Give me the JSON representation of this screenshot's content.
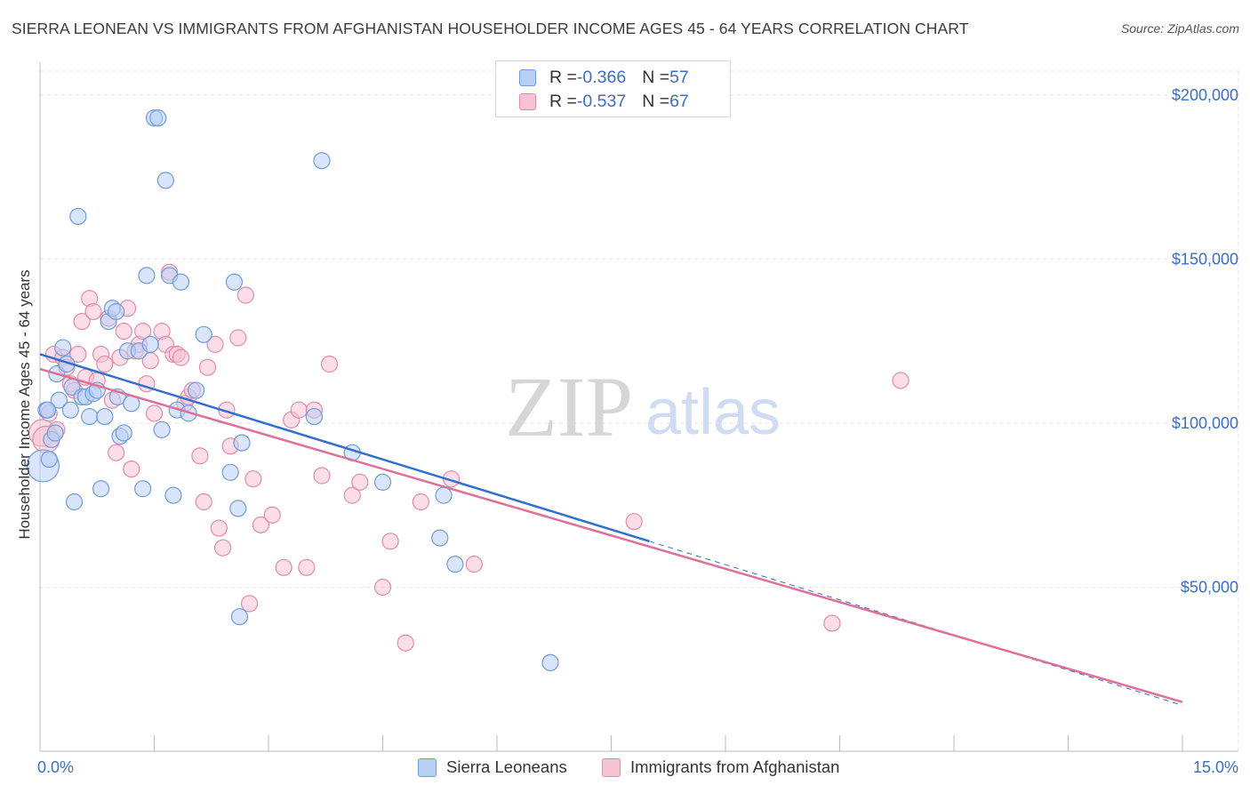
{
  "title": "SIERRA LEONEAN VS IMMIGRANTS FROM AFGHANISTAN HOUSEHOLDER INCOME AGES 45 - 64 YEARS CORRELATION CHART",
  "source": "Source: ZipAtlas.com",
  "watermark": {
    "zip": "ZIP",
    "atlas": "atlas"
  },
  "legend": {
    "blue": {
      "r_label": "R = ",
      "r_value": "-0.366",
      "n_label": "N = ",
      "n_value": "57"
    },
    "pink": {
      "r_label": "R = ",
      "r_value": "-0.537",
      "n_label": "N = ",
      "n_value": "67"
    }
  },
  "bottom_legend": {
    "blue": "Sierra Leoneans",
    "pink": "Immigrants from Afghanistan"
  },
  "colors": {
    "blue_fill": "#b8cff5",
    "blue_stroke": "#6f9be0",
    "blue_line": "#2f6fd0",
    "pink_fill": "#f7c3d3",
    "pink_stroke": "#e68aa8",
    "pink_line": "#e06f98",
    "grid": "#e3e3e3",
    "axis_text": "#3a6ecf"
  },
  "chart_data": {
    "type": "scatter",
    "title": "SIERRA LEONEAN VS IMMIGRANTS FROM AFGHANISTAN HOUSEHOLDER INCOME AGES 45 - 64 YEARS CORRELATION CHART",
    "xlabel": "",
    "ylabel": "Householder Income Ages 45 - 64 years",
    "xlim": [
      0,
      15
    ],
    "ylim": [
      0,
      210000
    ],
    "x_tick_labels": [
      "0.0%",
      "15.0%"
    ],
    "y_ticks": [
      50000,
      100000,
      150000,
      200000
    ],
    "y_tick_labels": [
      "$50,000",
      "$100,000",
      "$150,000",
      "$200,000"
    ],
    "grid": true,
    "legend_position": "top-center",
    "series": [
      {
        "name": "Sierra Leoneans",
        "R": -0.366,
        "N": 57,
        "trend": {
          "x0": 0,
          "y0": 121000,
          "x1": 8.0,
          "y1": 64000,
          "dashed_to_x": 15,
          "dashed_to_y": 14000
        },
        "points": [
          [
            0.04,
            87000,
            3
          ],
          [
            0.08,
            104000,
            1
          ],
          [
            0.12,
            89000,
            1
          ],
          [
            0.15,
            95000,
            1
          ],
          [
            0.2,
            97000,
            1
          ],
          [
            0.22,
            115000,
            1
          ],
          [
            0.25,
            107000,
            1
          ],
          [
            0.3,
            123000,
            1
          ],
          [
            0.35,
            118000,
            1
          ],
          [
            0.4,
            104000,
            1
          ],
          [
            0.42,
            111000,
            1
          ],
          [
            0.45,
            76000,
            1
          ],
          [
            0.5,
            163000,
            1
          ],
          [
            0.55,
            108000,
            1
          ],
          [
            0.6,
            108000,
            1
          ],
          [
            0.65,
            102000,
            1
          ],
          [
            0.7,
            109000,
            1
          ],
          [
            0.75,
            110000,
            1
          ],
          [
            0.8,
            80000,
            1
          ],
          [
            0.85,
            102000,
            1
          ],
          [
            0.9,
            131000,
            1
          ],
          [
            0.95,
            135000,
            1
          ],
          [
            1.0,
            134000,
            1
          ],
          [
            1.02,
            108000,
            1
          ],
          [
            1.05,
            96000,
            1
          ],
          [
            1.1,
            97000,
            1
          ],
          [
            1.15,
            122000,
            1
          ],
          [
            1.2,
            106000,
            1
          ],
          [
            1.3,
            122000,
            1
          ],
          [
            1.35,
            80000,
            1
          ],
          [
            1.4,
            145000,
            1
          ],
          [
            1.45,
            124000,
            1
          ],
          [
            1.5,
            193000,
            1
          ],
          [
            1.55,
            193000,
            1
          ],
          [
            1.6,
            98000,
            1
          ],
          [
            1.65,
            174000,
            1
          ],
          [
            1.7,
            145000,
            1
          ],
          [
            1.75,
            78000,
            1
          ],
          [
            1.8,
            104000,
            1
          ],
          [
            1.85,
            143000,
            1
          ],
          [
            1.95,
            103000,
            1
          ],
          [
            2.05,
            110000,
            1
          ],
          [
            2.15,
            127000,
            1
          ],
          [
            2.5,
            85000,
            1
          ],
          [
            2.55,
            143000,
            1
          ],
          [
            2.6,
            74000,
            1
          ],
          [
            2.62,
            41000,
            1
          ],
          [
            2.65,
            94000,
            1
          ],
          [
            3.6,
            102000,
            1
          ],
          [
            3.7,
            180000,
            1
          ],
          [
            4.1,
            91000,
            1
          ],
          [
            4.5,
            82000,
            1
          ],
          [
            5.3,
            78000,
            1
          ],
          [
            5.25,
            65000,
            1
          ],
          [
            5.45,
            57000,
            1
          ],
          [
            6.7,
            27000,
            1
          ],
          [
            0.1,
            104000,
            1
          ]
        ]
      },
      {
        "name": "Immigrants from Afghanistan",
        "R": -0.537,
        "N": 67,
        "trend": {
          "x0": 0,
          "y0": 116500,
          "x1": 15,
          "y1": 15000,
          "dashed_to_x": null,
          "dashed_to_y": null
        },
        "points": [
          [
            0.03,
            97000,
            2
          ],
          [
            0.08,
            95000,
            2
          ],
          [
            0.12,
            103000,
            1
          ],
          [
            0.18,
            121000,
            1
          ],
          [
            0.22,
            98000,
            1
          ],
          [
            0.3,
            120000,
            1
          ],
          [
            0.35,
            117000,
            1
          ],
          [
            0.4,
            112000,
            1
          ],
          [
            0.45,
            110000,
            1
          ],
          [
            0.5,
            121000,
            1
          ],
          [
            0.55,
            131000,
            1
          ],
          [
            0.6,
            114000,
            1
          ],
          [
            0.65,
            138000,
            1
          ],
          [
            0.7,
            134000,
            1
          ],
          [
            0.75,
            113000,
            1
          ],
          [
            0.8,
            121000,
            1
          ],
          [
            0.85,
            118000,
            1
          ],
          [
            0.9,
            132000,
            1
          ],
          [
            0.95,
            107000,
            1
          ],
          [
            1.0,
            91000,
            1
          ],
          [
            1.05,
            120000,
            1
          ],
          [
            1.1,
            128000,
            1
          ],
          [
            1.15,
            135000,
            1
          ],
          [
            1.2,
            86000,
            1
          ],
          [
            1.25,
            122000,
            1
          ],
          [
            1.3,
            124000,
            1
          ],
          [
            1.35,
            128000,
            1
          ],
          [
            1.4,
            112000,
            1
          ],
          [
            1.45,
            119000,
            1
          ],
          [
            1.5,
            103000,
            1
          ],
          [
            1.6,
            128000,
            1
          ],
          [
            1.65,
            124000,
            1
          ],
          [
            1.7,
            146000,
            1
          ],
          [
            1.75,
            121000,
            1
          ],
          [
            1.8,
            121000,
            1
          ],
          [
            1.85,
            120000,
            1
          ],
          [
            1.9,
            106000,
            1
          ],
          [
            1.95,
            108000,
            1
          ],
          [
            2.0,
            110000,
            1
          ],
          [
            2.1,
            90000,
            1
          ],
          [
            2.15,
            76000,
            1
          ],
          [
            2.2,
            117000,
            1
          ],
          [
            2.3,
            124000,
            1
          ],
          [
            2.35,
            68000,
            1
          ],
          [
            2.4,
            62000,
            1
          ],
          [
            2.45,
            104000,
            1
          ],
          [
            2.5,
            93000,
            1
          ],
          [
            2.6,
            126000,
            1
          ],
          [
            2.7,
            139000,
            1
          ],
          [
            2.75,
            45000,
            1
          ],
          [
            2.8,
            83000,
            1
          ],
          [
            2.9,
            69000,
            1
          ],
          [
            3.05,
            72000,
            1
          ],
          [
            3.2,
            56000,
            1
          ],
          [
            3.3,
            101000,
            1
          ],
          [
            3.4,
            104000,
            1
          ],
          [
            3.5,
            56000,
            1
          ],
          [
            3.6,
            104000,
            1
          ],
          [
            3.7,
            84000,
            1
          ],
          [
            3.8,
            118000,
            1
          ],
          [
            4.1,
            78000,
            1
          ],
          [
            4.2,
            82000,
            1
          ],
          [
            4.5,
            50000,
            1
          ],
          [
            4.6,
            64000,
            1
          ],
          [
            4.8,
            33000,
            1
          ],
          [
            5.0,
            76000,
            1
          ],
          [
            5.4,
            83000,
            1
          ],
          [
            5.7,
            57000,
            1
          ],
          [
            7.8,
            70000,
            1
          ],
          [
            10.4,
            39000,
            1
          ],
          [
            11.3,
            113000,
            1
          ]
        ]
      }
    ]
  }
}
